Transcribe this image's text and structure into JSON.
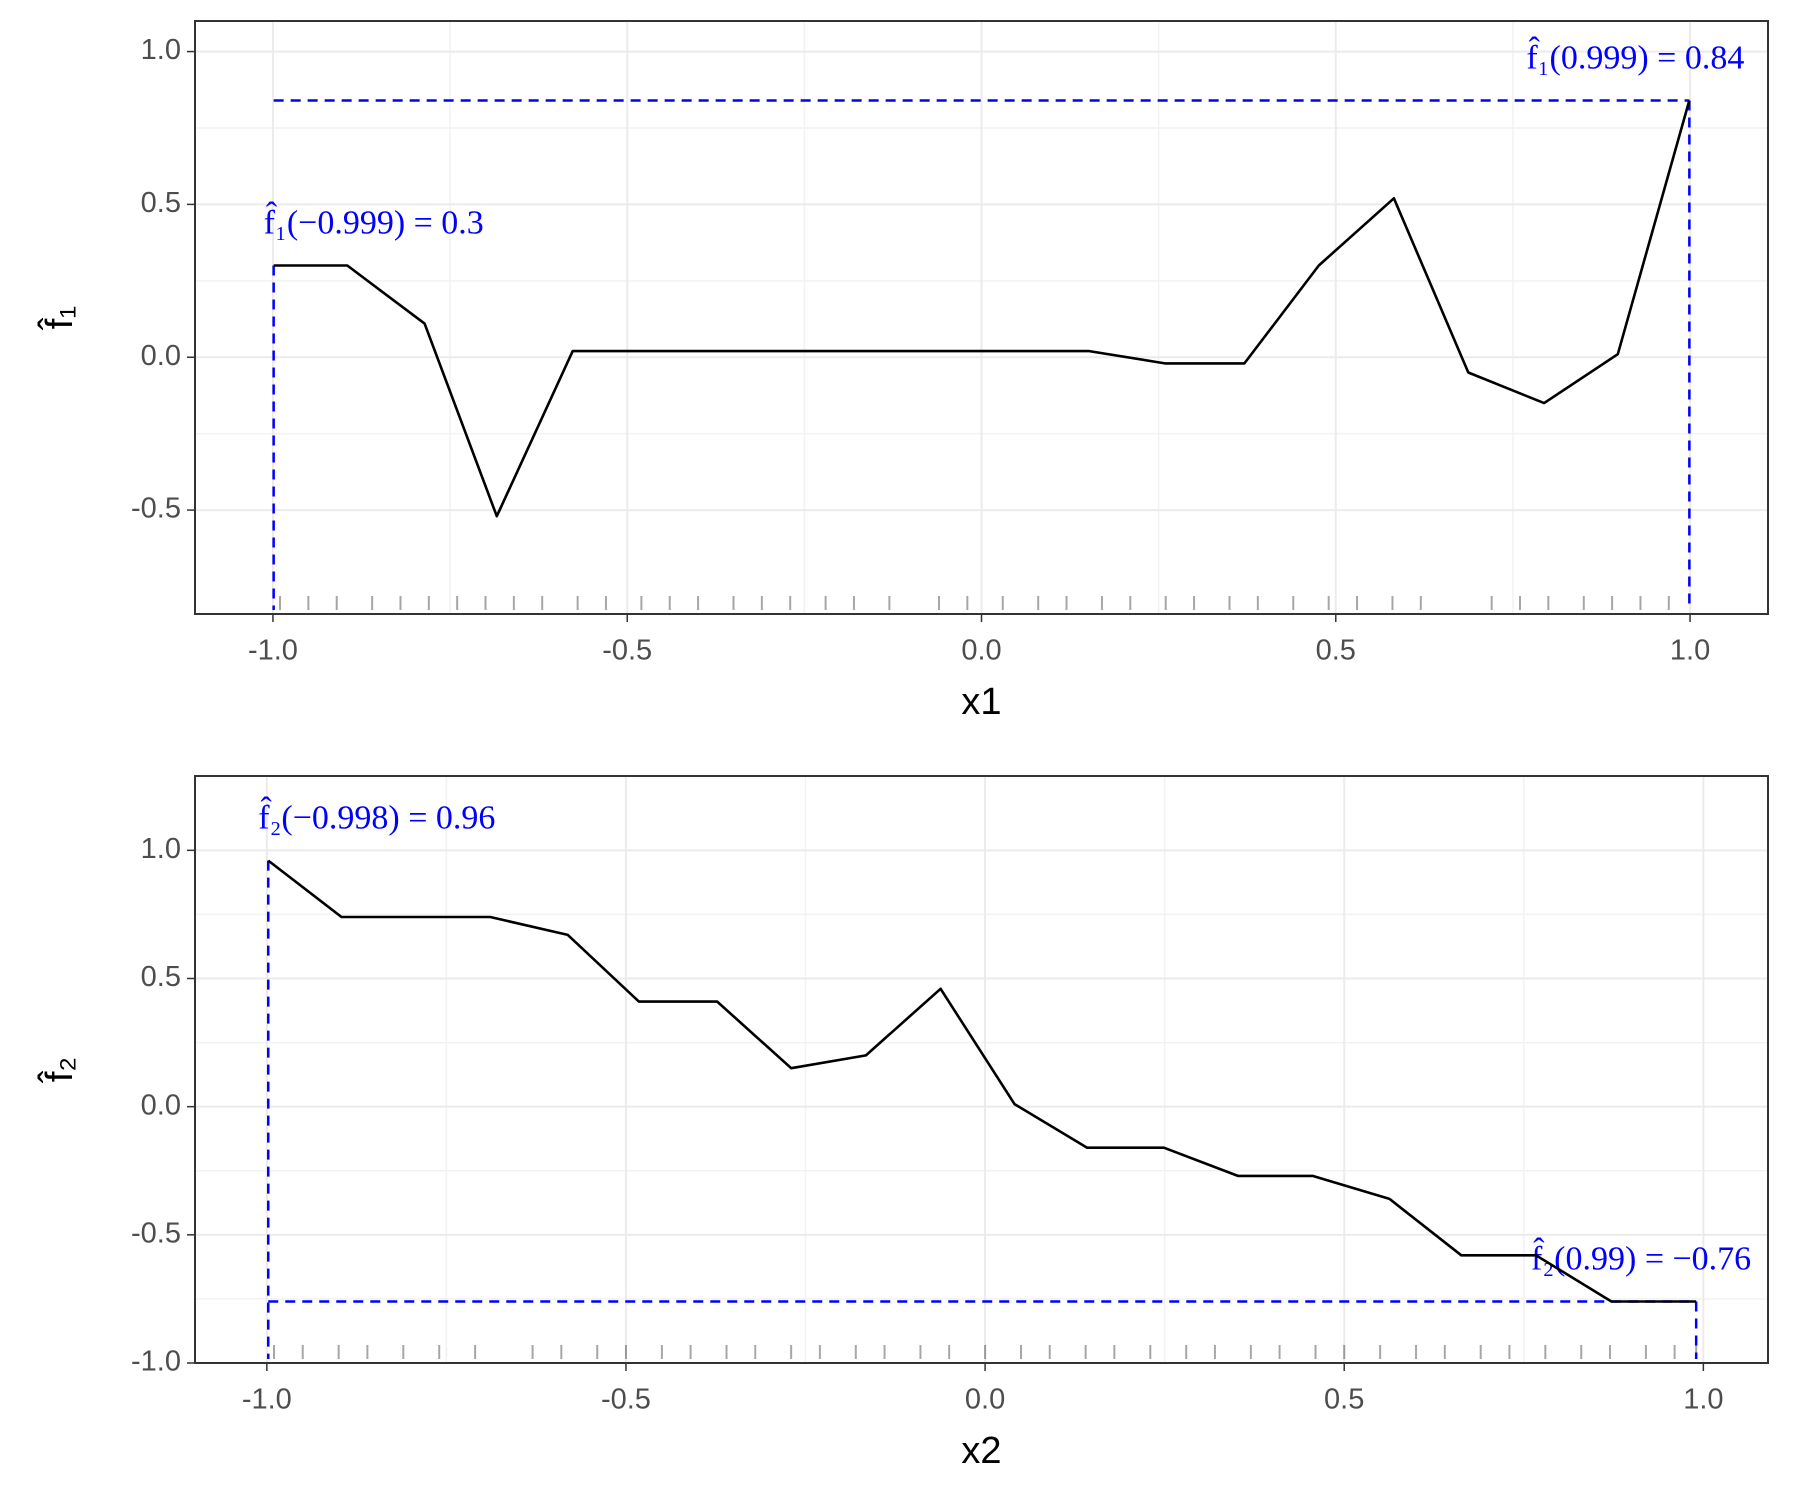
{
  "chart_data": [
    {
      "type": "line",
      "x_label": "x1",
      "y_label": "f̂₁",
      "x": [
        -0.999,
        -0.895,
        -0.786,
        -0.684,
        -0.577,
        0.152,
        0.259,
        0.371,
        0.476,
        0.582,
        0.687,
        0.794,
        0.898,
        0.999
      ],
      "values": [
        0.3,
        0.3,
        0.11,
        -0.52,
        0.02,
        0.02,
        -0.02,
        -0.02,
        0.3,
        0.52,
        -0.05,
        -0.15,
        0.01,
        0.84
      ],
      "color": "#000000",
      "annotation_color": "#0000ff",
      "annotations": [
        {
          "text": "f̂₁(−0.999) = 0.3",
          "x": -0.999,
          "y": 0.3
        },
        {
          "text": "f̂₁(0.999) = 0.84",
          "x": 0.999,
          "y": 0.84
        }
      ],
      "rug": [
        -0.99,
        -0.95,
        -0.91,
        -0.86,
        -0.82,
        -0.78,
        -0.74,
        -0.7,
        -0.66,
        -0.62,
        -0.57,
        -0.53,
        -0.48,
        -0.44,
        -0.4,
        -0.35,
        -0.31,
        -0.27,
        -0.22,
        -0.18,
        -0.13,
        -0.06,
        -0.02,
        0.03,
        0.08,
        0.12,
        0.17,
        0.21,
        0.26,
        0.3,
        0.35,
        0.39,
        0.44,
        0.49,
        0.53,
        0.58,
        0.62,
        0.72,
        0.76,
        0.8,
        0.85,
        0.89,
        0.93,
        0.97
      ],
      "xlim": [
        -1.11,
        1.11
      ],
      "ylim": [
        -0.84,
        1.1
      ],
      "xticks": [
        {
          "value": -1,
          "label": "-1.0"
        },
        -0.5,
        {
          "value": 0,
          "label": "0.0"
        },
        0.5,
        {
          "value": 1,
          "label": "1.0"
        }
      ],
      "yticks": [
        -0.5,
        {
          "value": 0,
          "label": "0.0"
        },
        0.5,
        {
          "value": 1,
          "label": "1.0"
        }
      ],
      "grid": true
    },
    {
      "type": "line",
      "x_label": "x2",
      "y_label": "f̂₂",
      "x": [
        -0.998,
        -0.896,
        -0.689,
        -0.581,
        -0.482,
        -0.373,
        -0.27,
        -0.166,
        -0.062,
        0.041,
        0.142,
        0.249,
        0.352,
        0.456,
        0.563,
        0.663,
        0.767,
        0.872,
        0.99
      ],
      "values": [
        0.96,
        0.74,
        0.74,
        0.67,
        0.41,
        0.41,
        0.15,
        0.2,
        0.46,
        0.01,
        -0.16,
        -0.16,
        -0.27,
        -0.27,
        -0.36,
        -0.58,
        -0.58,
        -0.76,
        -0.76
      ],
      "color": "#000000",
      "annotation_color": "#0000ff",
      "annotations": [
        {
          "text": "f̂₂(−0.998) = 0.96",
          "x": -0.998,
          "y": 0.96
        },
        {
          "text": "f̂₂(0.99) = −0.76",
          "x": 0.99,
          "y": -0.76
        }
      ],
      "rug": [
        -0.99,
        -0.95,
        -0.9,
        -0.86,
        -0.81,
        -0.76,
        -0.71,
        -0.63,
        -0.59,
        -0.54,
        -0.5,
        -0.45,
        -0.41,
        -0.36,
        -0.32,
        -0.27,
        -0.23,
        -0.18,
        -0.14,
        -0.09,
        -0.05,
        0.0,
        0.05,
        0.09,
        0.14,
        0.18,
        0.23,
        0.28,
        0.32,
        0.37,
        0.41,
        0.46,
        0.5,
        0.55,
        0.6,
        0.64,
        0.69,
        0.73,
        0.78,
        0.83,
        0.87,
        0.92,
        0.96,
        0.99
      ],
      "xlim": [
        -1.1,
        1.09
      ],
      "ylim": [
        -1.0,
        1.29
      ],
      "xticks": [
        {
          "value": -1,
          "label": "-1.0"
        },
        -0.5,
        {
          "value": 0,
          "label": "0.0"
        },
        0.5,
        {
          "value": 1,
          "label": "1.0"
        }
      ],
      "yticks": [
        {
          "value": -1,
          "label": "-1.0"
        },
        -0.5,
        {
          "value": 0,
          "label": "0.0"
        },
        0.5,
        {
          "value": 1,
          "label": "1.0"
        }
      ],
      "grid": true
    }
  ]
}
